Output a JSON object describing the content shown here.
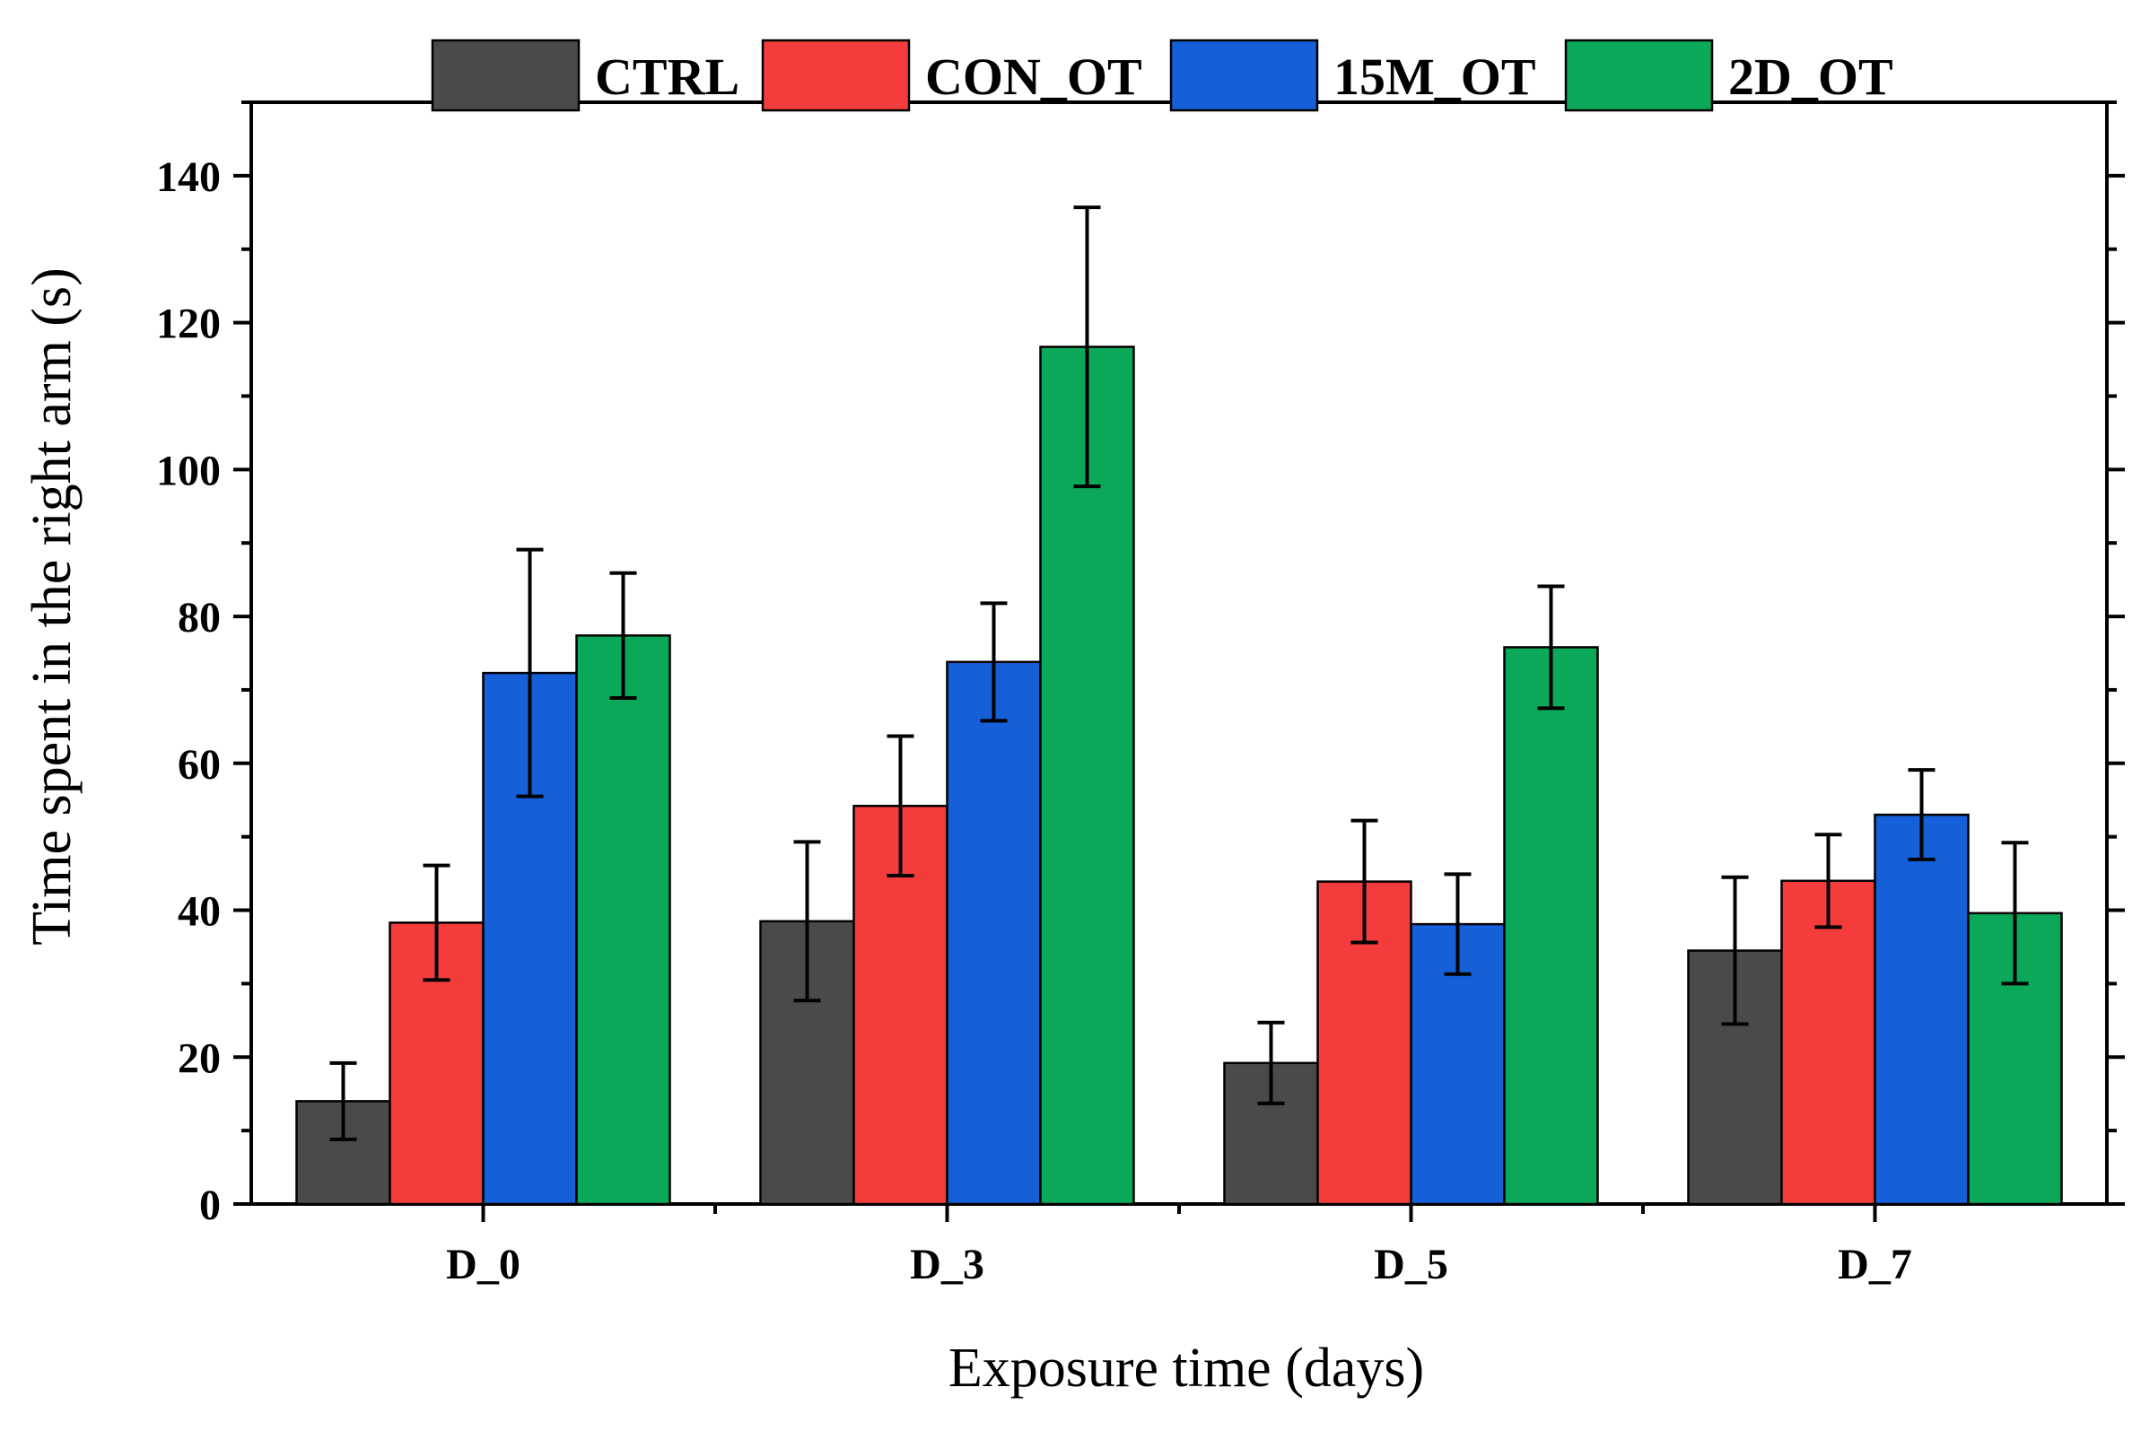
{
  "chart_data": {
    "type": "bar",
    "title": "",
    "xlabel": "Exposure time (days)",
    "ylabel": "Time spent in the right arm (s)",
    "ylim": [
      0,
      150
    ],
    "yticks": [
      0,
      20,
      40,
      60,
      80,
      100,
      120,
      140
    ],
    "ytick_labels": [
      "0",
      "20",
      "40",
      "60",
      "80",
      "100",
      "120",
      "140"
    ],
    "categories": [
      "D_0",
      "D_3",
      "D_5",
      "D_7"
    ],
    "legend_position": "top-center",
    "series": [
      {
        "name": "CTRL",
        "color": "#4a4a4a",
        "values": [
          14,
          38.5,
          19.2,
          34.5
        ],
        "errors": [
          5.2,
          10.8,
          5.5,
          10
        ]
      },
      {
        "name": "CON_OT",
        "color": "#f53c3c",
        "values": [
          38.3,
          54.2,
          43.9,
          44
        ],
        "errors": [
          7.8,
          9.5,
          8.3,
          6.3
        ]
      },
      {
        "name": "15M_OT",
        "color": "#1560d8",
        "values": [
          72.3,
          73.8,
          38.1,
          53
        ],
        "errors": [
          16.8,
          8,
          6.8,
          6.1
        ]
      },
      {
        "name": "2D_OT",
        "color": "#0ba85a",
        "values": [
          77.4,
          116.7,
          75.8,
          39.6
        ],
        "errors": [
          8.5,
          19,
          8.3,
          9.6
        ]
      }
    ]
  }
}
